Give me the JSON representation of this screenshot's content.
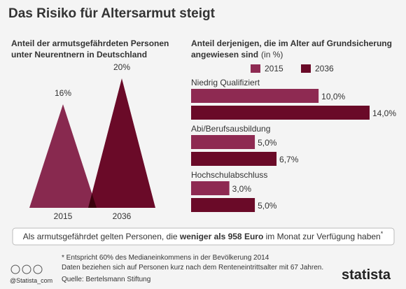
{
  "header": {
    "title": "Das Risiko für Altersarmut steigt"
  },
  "chart_data": [
    {
      "type": "triangle",
      "title": [
        "Anteil der armutsgefährdeten Personen",
        "unter Neurentnern in Deutschland"
      ],
      "categories": [
        "2015",
        "2036"
      ],
      "values": [
        16,
        20
      ],
      "value_labels": [
        "16%",
        "20%"
      ],
      "colors": [
        "#8e2a52",
        "#6a0a28"
      ]
    },
    {
      "type": "hbar",
      "title": [
        "Anteil derjenigen, die im Alter auf Grundsicherung",
        "angewiesen sind"
      ],
      "unit": "(in %)",
      "categories": [
        "Niedrig Qualifiziert",
        "Abi/Berufsausbildung",
        "Hochschulabschluss"
      ],
      "series": [
        {
          "name": "2015",
          "color": "#8e2a52",
          "values": [
            10,
            5,
            3
          ],
          "value_labels": [
            "10,0%",
            "5,0%",
            "3,0%"
          ]
        },
        {
          "name": "2036",
          "color": "#6a0a28",
          "values": [
            14,
            6.7,
            5
          ],
          "value_labels": [
            "14,0%",
            "6,7%",
            "5,0%"
          ]
        }
      ],
      "legend": "top"
    }
  ],
  "note": {
    "parts": [
      "Als armutsgefährdet gelten Personen, die ",
      "weniger als 958 Euro",
      " im Monat zur Verfügung haben",
      "*"
    ]
  },
  "footer": {
    "footnotes": [
      "* Entspricht 60% des Medianeinkommens in der Bevölkerung 2014",
      "Daten beziehen sich auf Personen kurz nach dem Renteneintrittsalter mit 67 Jahren."
    ],
    "source": "Quelle: Bertelsmann Stiftung",
    "handle": "@Statista_com",
    "brand": "statista"
  }
}
